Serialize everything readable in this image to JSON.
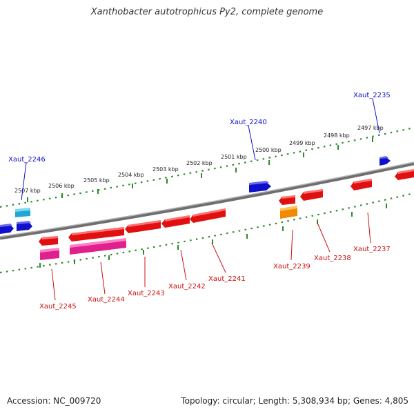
{
  "title": "Xanthobacter autotrophicus Py2, complete genome",
  "footer": {
    "accession": "Accession: NC_009720",
    "summary": "Topology: circular; Length: 5,308,934 bp; Genes: 4,805"
  },
  "scale_labels": [
    "2507 kbp",
    "2506 kbp",
    "2505 kbp",
    "2504 kbp",
    "2503 kbp",
    "2502 kbp",
    "2501 kbp",
    "2500 kbp",
    "2499 kbp",
    "2498 kbp",
    "2497 kbp"
  ],
  "gene_labels_forward": [
    "Xaut_2246",
    "Xaut_2240",
    "Xaut_2235"
  ],
  "gene_labels_reverse": [
    "Xaut_2245",
    "Xaut_2244",
    "Xaut_2243",
    "Xaut_2242",
    "Xaut_2241",
    "Xaut_2239",
    "Xaut_2238",
    "Xaut_2237"
  ],
  "colors": {
    "forward_gene": "#1010cc",
    "forward_gene_light": "#22b4dd",
    "reverse_gene": "#e01010",
    "reverse_gene_pink": "#e0208c",
    "reverse_gene_orange": "#f08a00",
    "backbone": "#808080",
    "tick_marks": "#2a8a2a",
    "forward_label": "#1010cc",
    "reverse_label": "#cc1010"
  }
}
